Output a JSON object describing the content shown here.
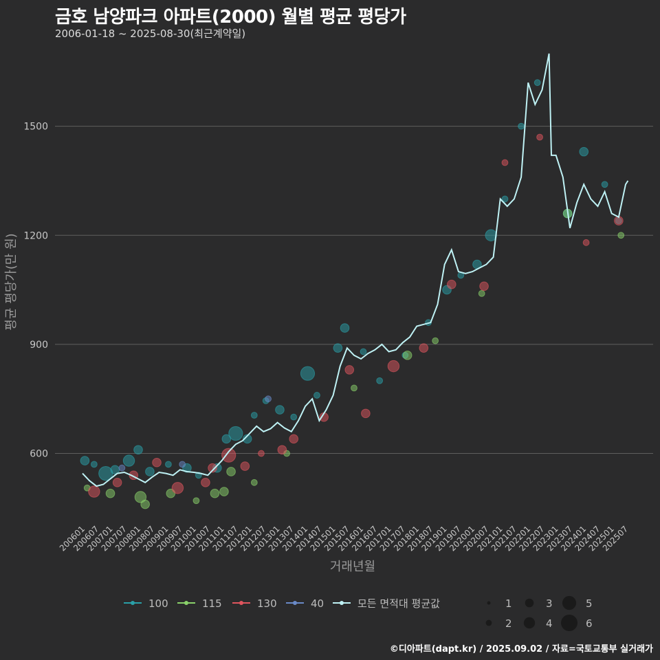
{
  "header": {
    "title": "금호 남양파크 아파트(2000) 월별 평균 평당가",
    "subtitle": "2006-01-18 ~ 2025-08-30(최근계약일)"
  },
  "footer": {
    "credit": "©디아파트(dapt.kr) / 2025.09.02 / 자료=국토교통부 실거래가"
  },
  "colors": {
    "100": "#2aa0a8",
    "115": "#8ad26a",
    "130": "#e0555e",
    "40": "#6a8ac8",
    "avg": "#bff2f5",
    "grid": "#5f5f5f",
    "background": "#2b2b2c"
  },
  "chart_data": {
    "type": "line",
    "title": "금호 남양파크 아파트(2000) 월별 평균 평당가",
    "xlabel": "거래년월",
    "ylabel": "평균 평당가(만 원)",
    "ylim": [
      410,
      1730
    ],
    "yticks": [
      600,
      900,
      1200,
      1500
    ],
    "x_tick_labels": [
      "200601",
      "200607",
      "200701",
      "200707",
      "200801",
      "200807",
      "200901",
      "200907",
      "201001",
      "201007",
      "201101",
      "201107",
      "201201",
      "201207",
      "201301",
      "201307",
      "201401",
      "201407",
      "201501",
      "201507",
      "201601",
      "201607",
      "201701",
      "201707",
      "201801",
      "201807",
      "201901",
      "201907",
      "202001",
      "202007",
      "202101",
      "202107",
      "202201",
      "202207",
      "202301",
      "202307",
      "202401",
      "202407",
      "202501",
      "202507"
    ],
    "grid": "horizontal",
    "legend": {
      "position": "bottom",
      "area_entries": [
        "100",
        "115",
        "130",
        "40",
        "모든 면적대 평균값"
      ],
      "size_entries": [
        1,
        2,
        3,
        4,
        5,
        6
      ]
    },
    "series": [
      {
        "name": "모든 면적대 평균값",
        "points": [
          [
            "2006-01",
            545
          ],
          [
            "2006-04",
            525
          ],
          [
            "2006-07",
            510
          ],
          [
            "2006-10",
            515
          ],
          [
            "2007-01",
            530
          ],
          [
            "2007-04",
            545
          ],
          [
            "2007-07",
            548
          ],
          [
            "2007-10",
            540
          ],
          [
            "2008-01",
            530
          ],
          [
            "2008-04",
            520
          ],
          [
            "2008-07",
            535
          ],
          [
            "2008-10",
            548
          ],
          [
            "2009-01",
            545
          ],
          [
            "2009-04",
            540
          ],
          [
            "2009-07",
            555
          ],
          [
            "2009-10",
            550
          ],
          [
            "2010-01",
            548
          ],
          [
            "2010-04",
            545
          ],
          [
            "2010-07",
            540
          ],
          [
            "2010-10",
            560
          ],
          [
            "2011-01",
            580
          ],
          [
            "2011-04",
            605
          ],
          [
            "2011-07",
            625
          ],
          [
            "2011-10",
            635
          ],
          [
            "2012-01",
            655
          ],
          [
            "2012-04",
            675
          ],
          [
            "2012-07",
            660
          ],
          [
            "2012-10",
            668
          ],
          [
            "2013-01",
            685
          ],
          [
            "2013-04",
            670
          ],
          [
            "2013-07",
            660
          ],
          [
            "2013-10",
            690
          ],
          [
            "2014-01",
            730
          ],
          [
            "2014-04",
            750
          ],
          [
            "2014-07",
            690
          ],
          [
            "2014-10",
            720
          ],
          [
            "2015-01",
            760
          ],
          [
            "2015-04",
            840
          ],
          [
            "2015-07",
            890
          ],
          [
            "2015-10",
            870
          ],
          [
            "2016-01",
            860
          ],
          [
            "2016-04",
            875
          ],
          [
            "2016-07",
            885
          ],
          [
            "2016-10",
            900
          ],
          [
            "2017-01",
            880
          ],
          [
            "2017-04",
            885
          ],
          [
            "2017-07",
            905
          ],
          [
            "2017-10",
            920
          ],
          [
            "2018-01",
            950
          ],
          [
            "2018-04",
            955
          ],
          [
            "2018-07",
            960
          ],
          [
            "2018-10",
            1010
          ],
          [
            "2019-01",
            1120
          ],
          [
            "2019-04",
            1160
          ],
          [
            "2019-07",
            1100
          ],
          [
            "2019-10",
            1095
          ],
          [
            "2020-01",
            1100
          ],
          [
            "2020-04",
            1110
          ],
          [
            "2020-07",
            1120
          ],
          [
            "2020-10",
            1140
          ],
          [
            "2021-01",
            1300
          ],
          [
            "2021-04",
            1280
          ],
          [
            "2021-07",
            1300
          ],
          [
            "2021-10",
            1360
          ],
          [
            "2022-01",
            1620
          ],
          [
            "2022-04",
            1560
          ],
          [
            "2022-07",
            1600
          ],
          [
            "2022-10",
            1700
          ],
          [
            "2022-11",
            1420
          ],
          [
            "2023-01",
            1420
          ],
          [
            "2023-04",
            1360
          ],
          [
            "2023-07",
            1220
          ],
          [
            "2023-10",
            1290
          ],
          [
            "2024-01",
            1340
          ],
          [
            "2024-04",
            1300
          ],
          [
            "2024-07",
            1280
          ],
          [
            "2024-10",
            1320
          ],
          [
            "2025-01",
            1260
          ],
          [
            "2025-04",
            1250
          ],
          [
            "2025-07",
            1340
          ],
          [
            "2025-08",
            1350
          ]
        ]
      },
      {
        "name": "100",
        "points": [
          [
            "2006-02",
            580,
            3
          ],
          [
            "2006-06",
            570,
            2
          ],
          [
            "2006-11",
            545,
            5
          ],
          [
            "2007-03",
            555,
            3
          ],
          [
            "2007-09",
            580,
            4
          ],
          [
            "2008-01",
            610,
            3
          ],
          [
            "2008-06",
            550,
            3
          ],
          [
            "2009-02",
            570,
            2
          ],
          [
            "2009-10",
            560,
            3
          ],
          [
            "2010-03",
            540,
            2
          ],
          [
            "2010-11",
            560,
            3
          ],
          [
            "2011-03",
            640,
            3
          ],
          [
            "2011-07",
            655,
            5
          ],
          [
            "2011-12",
            640,
            3
          ],
          [
            "2012-03",
            705,
            2
          ],
          [
            "2012-08",
            745,
            2
          ],
          [
            "2013-02",
            720,
            3
          ],
          [
            "2013-08",
            700,
            2
          ],
          [
            "2014-02",
            820,
            5
          ],
          [
            "2014-06",
            760,
            2
          ],
          [
            "2015-03",
            890,
            3
          ],
          [
            "2015-06",
            945,
            3
          ],
          [
            "2016-02",
            880,
            2
          ],
          [
            "2016-09",
            800,
            2
          ],
          [
            "2017-08",
            870,
            2
          ],
          [
            "2018-06",
            960,
            2
          ],
          [
            "2019-02",
            1050,
            3
          ],
          [
            "2019-08",
            1090,
            2
          ],
          [
            "2020-03",
            1120,
            3
          ],
          [
            "2020-09",
            1200,
            4
          ],
          [
            "2021-03",
            1300,
            2
          ],
          [
            "2021-10",
            1500,
            2
          ],
          [
            "2022-05",
            1620,
            2
          ],
          [
            "2023-06",
            1260,
            3
          ],
          [
            "2024-01",
            1430,
            3
          ],
          [
            "2024-10",
            1340,
            2
          ],
          [
            "2025-04",
            1240,
            2
          ]
        ]
      },
      {
        "name": "115",
        "points": [
          [
            "2006-03",
            505,
            2
          ],
          [
            "2007-01",
            490,
            3
          ],
          [
            "2008-02",
            480,
            4
          ],
          [
            "2008-04",
            460,
            3
          ],
          [
            "2009-03",
            490,
            3
          ],
          [
            "2010-02",
            470,
            2
          ],
          [
            "2010-10",
            490,
            3
          ],
          [
            "2011-02",
            495,
            3
          ],
          [
            "2011-05",
            550,
            3
          ],
          [
            "2012-03",
            520,
            2
          ],
          [
            "2013-05",
            600,
            2
          ],
          [
            "2015-10",
            780,
            2
          ],
          [
            "2017-09",
            870,
            3
          ],
          [
            "2018-09",
            910,
            2
          ],
          [
            "2020-05",
            1040,
            2
          ],
          [
            "2023-06",
            1260,
            3
          ],
          [
            "2025-05",
            1200,
            2
          ]
        ]
      },
      {
        "name": "130",
        "points": [
          [
            "2006-06",
            495,
            4
          ],
          [
            "2007-04",
            520,
            3
          ],
          [
            "2007-11",
            540,
            3
          ],
          [
            "2008-09",
            575,
            3
          ],
          [
            "2009-06",
            505,
            4
          ],
          [
            "2010-06",
            520,
            3
          ],
          [
            "2010-09",
            560,
            3
          ],
          [
            "2011-04",
            595,
            5
          ],
          [
            "2011-11",
            565,
            3
          ],
          [
            "2012-06",
            600,
            2
          ],
          [
            "2013-03",
            610,
            3
          ],
          [
            "2013-08",
            640,
            3
          ],
          [
            "2014-09",
            700,
            3
          ],
          [
            "2015-08",
            830,
            3
          ],
          [
            "2016-03",
            710,
            3
          ],
          [
            "2017-03",
            840,
            4
          ],
          [
            "2018-04",
            890,
            3
          ],
          [
            "2019-04",
            1065,
            3
          ],
          [
            "2020-06",
            1060,
            3
          ],
          [
            "2021-03",
            1400,
            2
          ],
          [
            "2022-06",
            1470,
            2
          ],
          [
            "2024-02",
            1180,
            2
          ],
          [
            "2025-04",
            1240,
            3
          ]
        ]
      },
      {
        "name": "40",
        "points": [
          [
            "2007-06",
            560,
            2
          ],
          [
            "2009-08",
            570,
            2
          ],
          [
            "2012-09",
            750,
            2
          ]
        ]
      }
    ]
  }
}
